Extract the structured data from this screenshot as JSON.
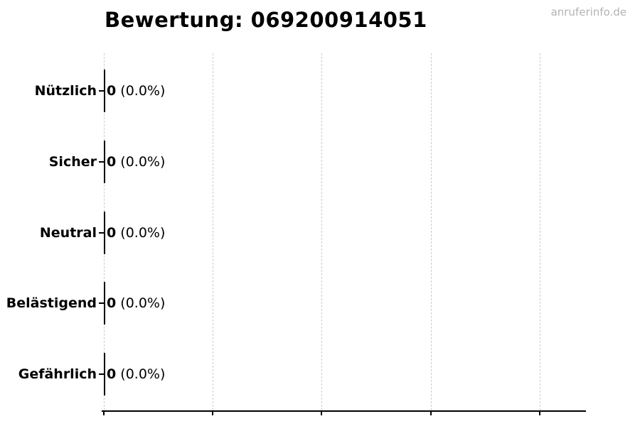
{
  "title": "Bewertung: 069200914051",
  "watermark": "anruferinfo.de",
  "chart_data": {
    "type": "bar",
    "orientation": "horizontal",
    "title": "Bewertung: 069200914051",
    "categories": [
      "Nützlich",
      "Sicher",
      "Neutral",
      "Belästigend",
      "Gefährlich"
    ],
    "values": [
      0,
      0,
      0,
      0,
      0
    ],
    "percentages": [
      "0.0%",
      "0.0%",
      "0.0%",
      "0.0%",
      "0.0%"
    ],
    "value_labels": [
      "0 (0.0%)",
      "0 (0.0%)",
      "0 (0.0%)",
      "0 (0.0%)",
      "0 (0.0%)"
    ],
    "xlabel": "",
    "ylabel": "",
    "x_tick_labels": [],
    "legend": "none",
    "grid": "vertical dashed gridlines",
    "colors": {
      "bar_outline": "#000000",
      "text": "#000000",
      "grid": "#cccccc",
      "axis": "#000000",
      "watermark": "#b3b3b3",
      "background": "#ffffff"
    }
  }
}
